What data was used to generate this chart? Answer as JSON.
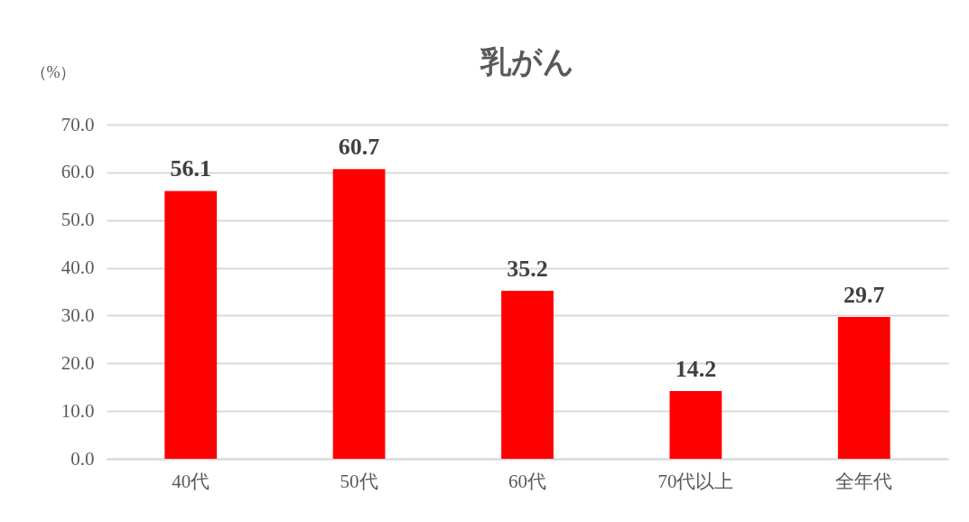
{
  "chart_data": {
    "type": "bar",
    "title": "乳がん",
    "ylabel": "（%）",
    "categories": [
      "40代",
      "50代",
      "60代",
      "70代以上",
      "全年代"
    ],
    "values": [
      56.1,
      60.7,
      35.2,
      14.2,
      29.7
    ],
    "color": "#ff0000",
    "ylim": [
      0,
      70
    ],
    "yticks": [
      {
        "value": 0,
        "label": "0.0"
      },
      {
        "value": 10,
        "label": "10.0"
      },
      {
        "value": 20,
        "label": "20.0"
      },
      {
        "value": 30,
        "label": "30.0"
      },
      {
        "value": 40,
        "label": "40.0"
      },
      {
        "value": 50,
        "label": "50.0"
      },
      {
        "value": 60,
        "label": "60.0"
      },
      {
        "value": 70,
        "label": "70.0"
      }
    ],
    "grid": "y",
    "data_labels": true
  }
}
